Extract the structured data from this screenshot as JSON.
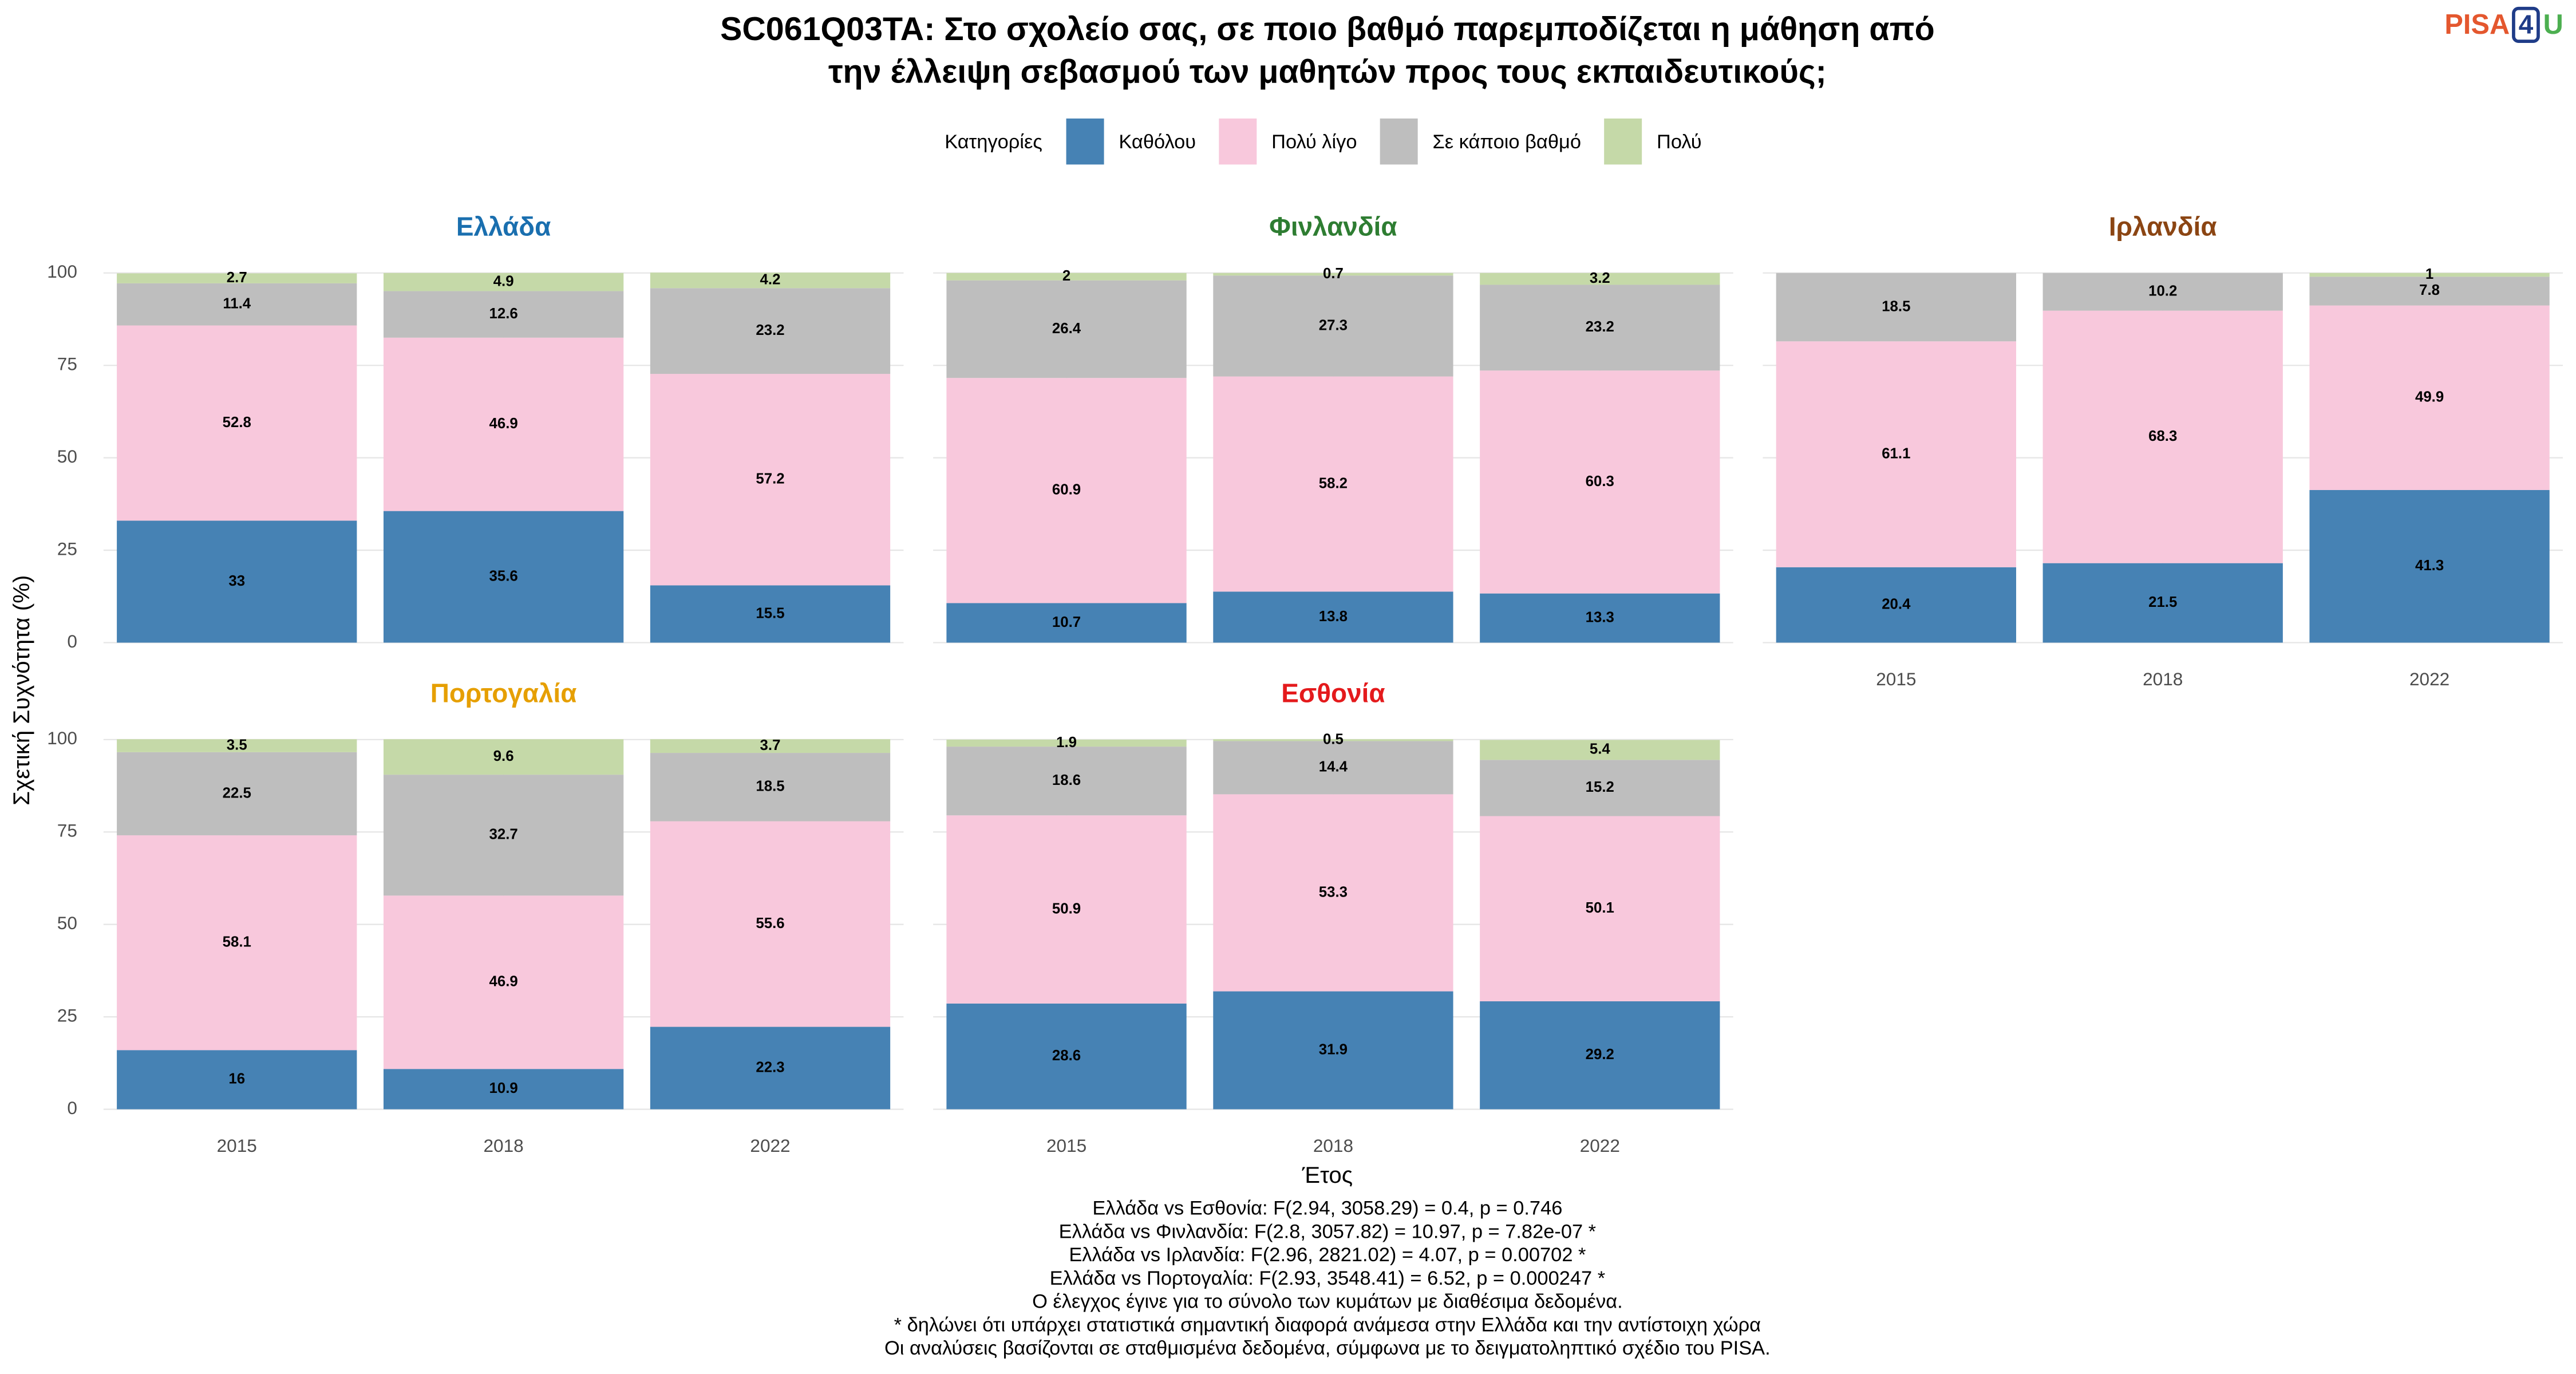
{
  "header": {
    "title": [
      "SC061Q03TA: Στο σχολείο σας, σε ποιο βαθμό παρεμποδίζεται η μάθηση από",
      "την έλλειψη σεβασμού των μαθητών προς τους εκπαιδευτικούς;"
    ],
    "logo": [
      "PISA",
      "4",
      "U"
    ]
  },
  "legend_title": "Κατηγορίες",
  "y_label": "Σχετική Συχνότητα (%)",
  "x_label": "Έτος",
  "notes": [
    "Ελλάδα vs Εσθονία: F(2.94, 3058.29) = 0.4, p = 0.746",
    "Ελλάδα vs Φινλανδία: F(2.8, 3057.82) = 10.97, p = 7.82e-07 *",
    "Ελλάδα vs Ιρλανδία: F(2.96, 2821.02) = 4.07, p = 0.00702 *",
    "Ελλάδα vs Πορτογαλία: F(2.93, 3548.41) = 6.52, p = 0.000247 *",
    "Ο έλεγχος έγινε για το σύνολο των κυμάτων με διαθέσιμα δεδομένα.",
    "* δηλώνει ότι υπάρχει στατιστικά σημαντική διαφορά ανάμεσα στην Ελλάδα και την αντίστοιχη χώρα",
    "Οι αναλύσεις βασίζονται σε σταθμισμένα δεδομένα, σύμφωνα με το δειγματοληπτικό σχέδιο του PISA."
  ],
  "chart_data": [
    {
      "type": "bar",
      "stacked": true,
      "title": "Ελλάδα",
      "title_color": "#1a6faf",
      "categories": [
        "2015",
        "2018",
        "2022"
      ],
      "ylim": [
        0,
        100
      ],
      "yticks": [
        0,
        25,
        50,
        75,
        100
      ],
      "grid": true,
      "series": [
        {
          "name": "Καθόλου",
          "color": "#4682b4",
          "values": [
            33,
            35.6,
            15.5
          ]
        },
        {
          "name": "Πολύ λίγο",
          "color": "#f8c8dc",
          "values": [
            52.8,
            46.9,
            57.2
          ]
        },
        {
          "name": "Σε κάποιο βαθμό",
          "color": "#bebebe",
          "values": [
            11.4,
            12.6,
            23.2
          ]
        },
        {
          "name": "Πολύ",
          "color": "#c5d9a8",
          "values": [
            2.7,
            4.9,
            4.2
          ]
        }
      ]
    },
    {
      "type": "bar",
      "stacked": true,
      "title": "Φινλανδία",
      "title_color": "#2e7d32",
      "categories": [
        "2015",
        "2018",
        "2022"
      ],
      "ylim": [
        0,
        100
      ],
      "yticks": [
        0,
        25,
        50,
        75,
        100
      ],
      "grid": true,
      "series": [
        {
          "name": "Καθόλου",
          "color": "#4682b4",
          "values": [
            10.7,
            13.8,
            13.3
          ]
        },
        {
          "name": "Πολύ λίγο",
          "color": "#f8c8dc",
          "values": [
            60.9,
            58.2,
            60.3
          ]
        },
        {
          "name": "Σε κάποιο βαθμό",
          "color": "#bebebe",
          "values": [
            26.4,
            27.3,
            23.2
          ]
        },
        {
          "name": "Πολύ",
          "color": "#c5d9a8",
          "values": [
            2,
            0.7,
            3.2
          ]
        }
      ]
    },
    {
      "type": "bar",
      "stacked": true,
      "title": "Ιρλανδία",
      "title_color": "#8b4513",
      "categories": [
        "2015",
        "2018",
        "2022"
      ],
      "ylim": [
        0,
        100
      ],
      "yticks": [
        0,
        25,
        50,
        75,
        100
      ],
      "grid": true,
      "series": [
        {
          "name": "Καθόλου",
          "color": "#4682b4",
          "values": [
            20.4,
            21.5,
            41.3
          ]
        },
        {
          "name": "Πολύ λίγο",
          "color": "#f8c8dc",
          "values": [
            61.1,
            68.3,
            49.9
          ]
        },
        {
          "name": "Σε κάποιο βαθμό",
          "color": "#bebebe",
          "values": [
            18.5,
            10.2,
            7.8
          ]
        },
        {
          "name": "Πολύ",
          "color": "#c5d9a8",
          "values": [
            null,
            null,
            1
          ]
        }
      ]
    },
    {
      "type": "bar",
      "stacked": true,
      "title": "Πορτογαλία",
      "title_color": "#e69f00",
      "categories": [
        "2015",
        "2018",
        "2022"
      ],
      "ylim": [
        0,
        100
      ],
      "yticks": [
        0,
        25,
        50,
        75,
        100
      ],
      "grid": true,
      "series": [
        {
          "name": "Καθόλου",
          "color": "#4682b4",
          "values": [
            16,
            10.9,
            22.3
          ]
        },
        {
          "name": "Πολύ λίγο",
          "color": "#f8c8dc",
          "values": [
            58.1,
            46.9,
            55.6
          ]
        },
        {
          "name": "Σε κάποιο βαθμό",
          "color": "#bebebe",
          "values": [
            22.5,
            32.7,
            18.5
          ]
        },
        {
          "name": "Πολύ",
          "color": "#c5d9a8",
          "values": [
            3.5,
            9.6,
            3.7
          ]
        }
      ]
    },
    {
      "type": "bar",
      "stacked": true,
      "title": "Εσθονία",
      "title_color": "#e41a1c",
      "categories": [
        "2015",
        "2018",
        "2022"
      ],
      "ylim": [
        0,
        100
      ],
      "yticks": [
        0,
        25,
        50,
        75,
        100
      ],
      "grid": true,
      "series": [
        {
          "name": "Καθόλου",
          "color": "#4682b4",
          "values": [
            28.6,
            31.9,
            29.2
          ]
        },
        {
          "name": "Πολύ λίγο",
          "color": "#f8c8dc",
          "values": [
            50.9,
            53.3,
            50.1
          ]
        },
        {
          "name": "Σε κάποιο βαθμό",
          "color": "#bebebe",
          "values": [
            18.6,
            14.4,
            15.2
          ]
        },
        {
          "name": "Πολύ",
          "color": "#c5d9a8",
          "values": [
            1.9,
            0.5,
            5.4
          ]
        }
      ]
    }
  ]
}
